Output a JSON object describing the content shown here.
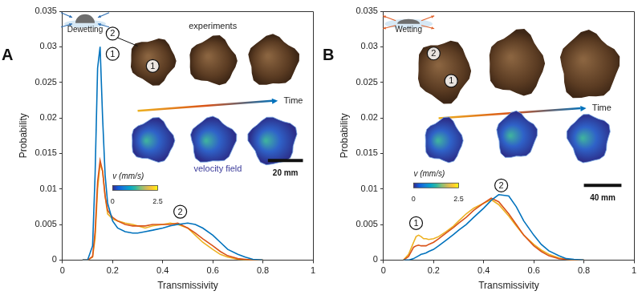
{
  "chart_data": [
    {
      "type": "line",
      "title": "A",
      "x_label": "Transmissivity",
      "y_label": "Probability",
      "x": [
        0.08,
        0.1,
        0.12,
        0.13,
        0.14,
        0.15,
        0.16,
        0.17,
        0.18,
        0.2,
        0.22,
        0.25,
        0.28,
        0.3,
        0.33,
        0.36,
        0.4,
        0.43,
        0.46,
        0.5,
        0.53,
        0.56,
        0.6,
        0.63,
        0.66,
        0.7,
        0.73,
        0.76,
        0.8
      ],
      "series": [
        {
          "color": "#0072bd",
          "values": [
            0,
            0,
            0.002,
            0.012,
            0.027,
            0.03,
            0.02,
            0.012,
            0.008,
            0.0055,
            0.0045,
            0.004,
            0.0038,
            0.0038,
            0.004,
            0.0042,
            0.0045,
            0.0048,
            0.005,
            0.0052,
            0.005,
            0.0045,
            0.0035,
            0.0025,
            0.0015,
            0.0008,
            0.0004,
            0.0001,
            0
          ]
        },
        {
          "color": "#d95319",
          "values": [
            0,
            0,
            0.0005,
            0.004,
            0.011,
            0.014,
            0.0125,
            0.009,
            0.007,
            0.006,
            0.0055,
            0.005,
            0.0048,
            0.0048,
            0.0048,
            0.005,
            0.005,
            0.005,
            0.0052,
            0.0045,
            0.0038,
            0.003,
            0.002,
            0.0012,
            0.0006,
            0.0002,
            0.0001,
            0,
            0
          ]
        },
        {
          "color": "#edb120",
          "values": [
            0,
            0,
            0.0004,
            0.003,
            0.01,
            0.0135,
            0.0125,
            0.009,
            0.0065,
            0.0058,
            0.0055,
            0.0052,
            0.005,
            0.0048,
            0.0045,
            0.0048,
            0.005,
            0.0052,
            0.005,
            0.0045,
            0.0035,
            0.0025,
            0.0015,
            0.0008,
            0.0004,
            0.0001,
            0,
            0,
            0
          ]
        }
      ],
      "xlim": [
        0,
        1
      ],
      "xticks": [
        0,
        0.2,
        0.4,
        0.6,
        0.8,
        1
      ],
      "ylim": [
        0,
        0.035
      ],
      "yticks": [
        0,
        0.005,
        0.01,
        0.015,
        0.02,
        0.025,
        0.03,
        0.035
      ],
      "grid": false,
      "annotations": [
        {
          "text": "1",
          "x": 0.2,
          "y": 0.029
        },
        {
          "text": "2",
          "x": 0.47,
          "y": 0.0068
        }
      ],
      "insets": {
        "process": "Dewetting",
        "experiments_label": "experiments",
        "velocity_label": "velocity field",
        "arrow_label": "Time",
        "scale_bar": "20 mm",
        "image_labels": [
          "1",
          "2"
        ],
        "colorbar": {
          "label": "v (mm/s)",
          "range": [
            0,
            2.5
          ],
          "ticks": [
            0,
            2.5
          ]
        }
      }
    },
    {
      "type": "line",
      "title": "B",
      "x_label": "Transmissivity",
      "y_label": "Probability",
      "x": [
        0.08,
        0.1,
        0.12,
        0.13,
        0.14,
        0.15,
        0.16,
        0.17,
        0.18,
        0.2,
        0.22,
        0.25,
        0.28,
        0.3,
        0.33,
        0.36,
        0.4,
        0.43,
        0.46,
        0.5,
        0.53,
        0.56,
        0.6,
        0.63,
        0.66,
        0.7,
        0.73,
        0.76,
        0.8
      ],
      "series": [
        {
          "color": "#0072bd",
          "values": [
            0,
            0,
            0.0002,
            0.0004,
            0.0006,
            0.0008,
            0.0009,
            0.001,
            0.0012,
            0.0015,
            0.002,
            0.0028,
            0.0036,
            0.0042,
            0.005,
            0.006,
            0.0073,
            0.0084,
            0.0092,
            0.009,
            0.0075,
            0.0055,
            0.0035,
            0.0022,
            0.0013,
            0.0006,
            0.0002,
            0.0001,
            0
          ]
        },
        {
          "color": "#d95319",
          "values": [
            0,
            0.0005,
            0.0018,
            0.002,
            0.0021,
            0.002,
            0.002,
            0.002,
            0.0022,
            0.0025,
            0.003,
            0.0038,
            0.0046,
            0.0052,
            0.006,
            0.007,
            0.008,
            0.0087,
            0.0082,
            0.0065,
            0.005,
            0.0035,
            0.002,
            0.0012,
            0.0006,
            0.0002,
            0.0001,
            0,
            0
          ]
        },
        {
          "color": "#edb120",
          "values": [
            0,
            0.0008,
            0.0025,
            0.0033,
            0.0035,
            0.0033,
            0.003,
            0.003,
            0.0029,
            0.003,
            0.0033,
            0.004,
            0.0048,
            0.0055,
            0.0065,
            0.0073,
            0.008,
            0.0085,
            0.0078,
            0.0062,
            0.0048,
            0.0035,
            0.0022,
            0.0014,
            0.0008,
            0.0003,
            0.0001,
            0,
            0
          ]
        }
      ],
      "xlim": [
        0,
        1
      ],
      "xticks": [
        0,
        0.2,
        0.4,
        0.6,
        0.8,
        1
      ],
      "ylim": [
        0,
        0.035
      ],
      "yticks": [
        0,
        0.005,
        0.01,
        0.015,
        0.02,
        0.025,
        0.03,
        0.035
      ],
      "grid": false,
      "annotations": [
        {
          "text": "1",
          "x": 0.13,
          "y": 0.0052
        },
        {
          "text": "2",
          "x": 0.47,
          "y": 0.0105
        }
      ],
      "insets": {
        "process": "Wetting",
        "arrow_label": "Time",
        "scale_bar": "40 mm",
        "image_labels": [
          "1",
          "2"
        ],
        "colorbar": {
          "label": "v (mm/s)",
          "range": [
            0,
            2.5
          ],
          "ticks": [
            0,
            2.5
          ]
        }
      }
    }
  ]
}
